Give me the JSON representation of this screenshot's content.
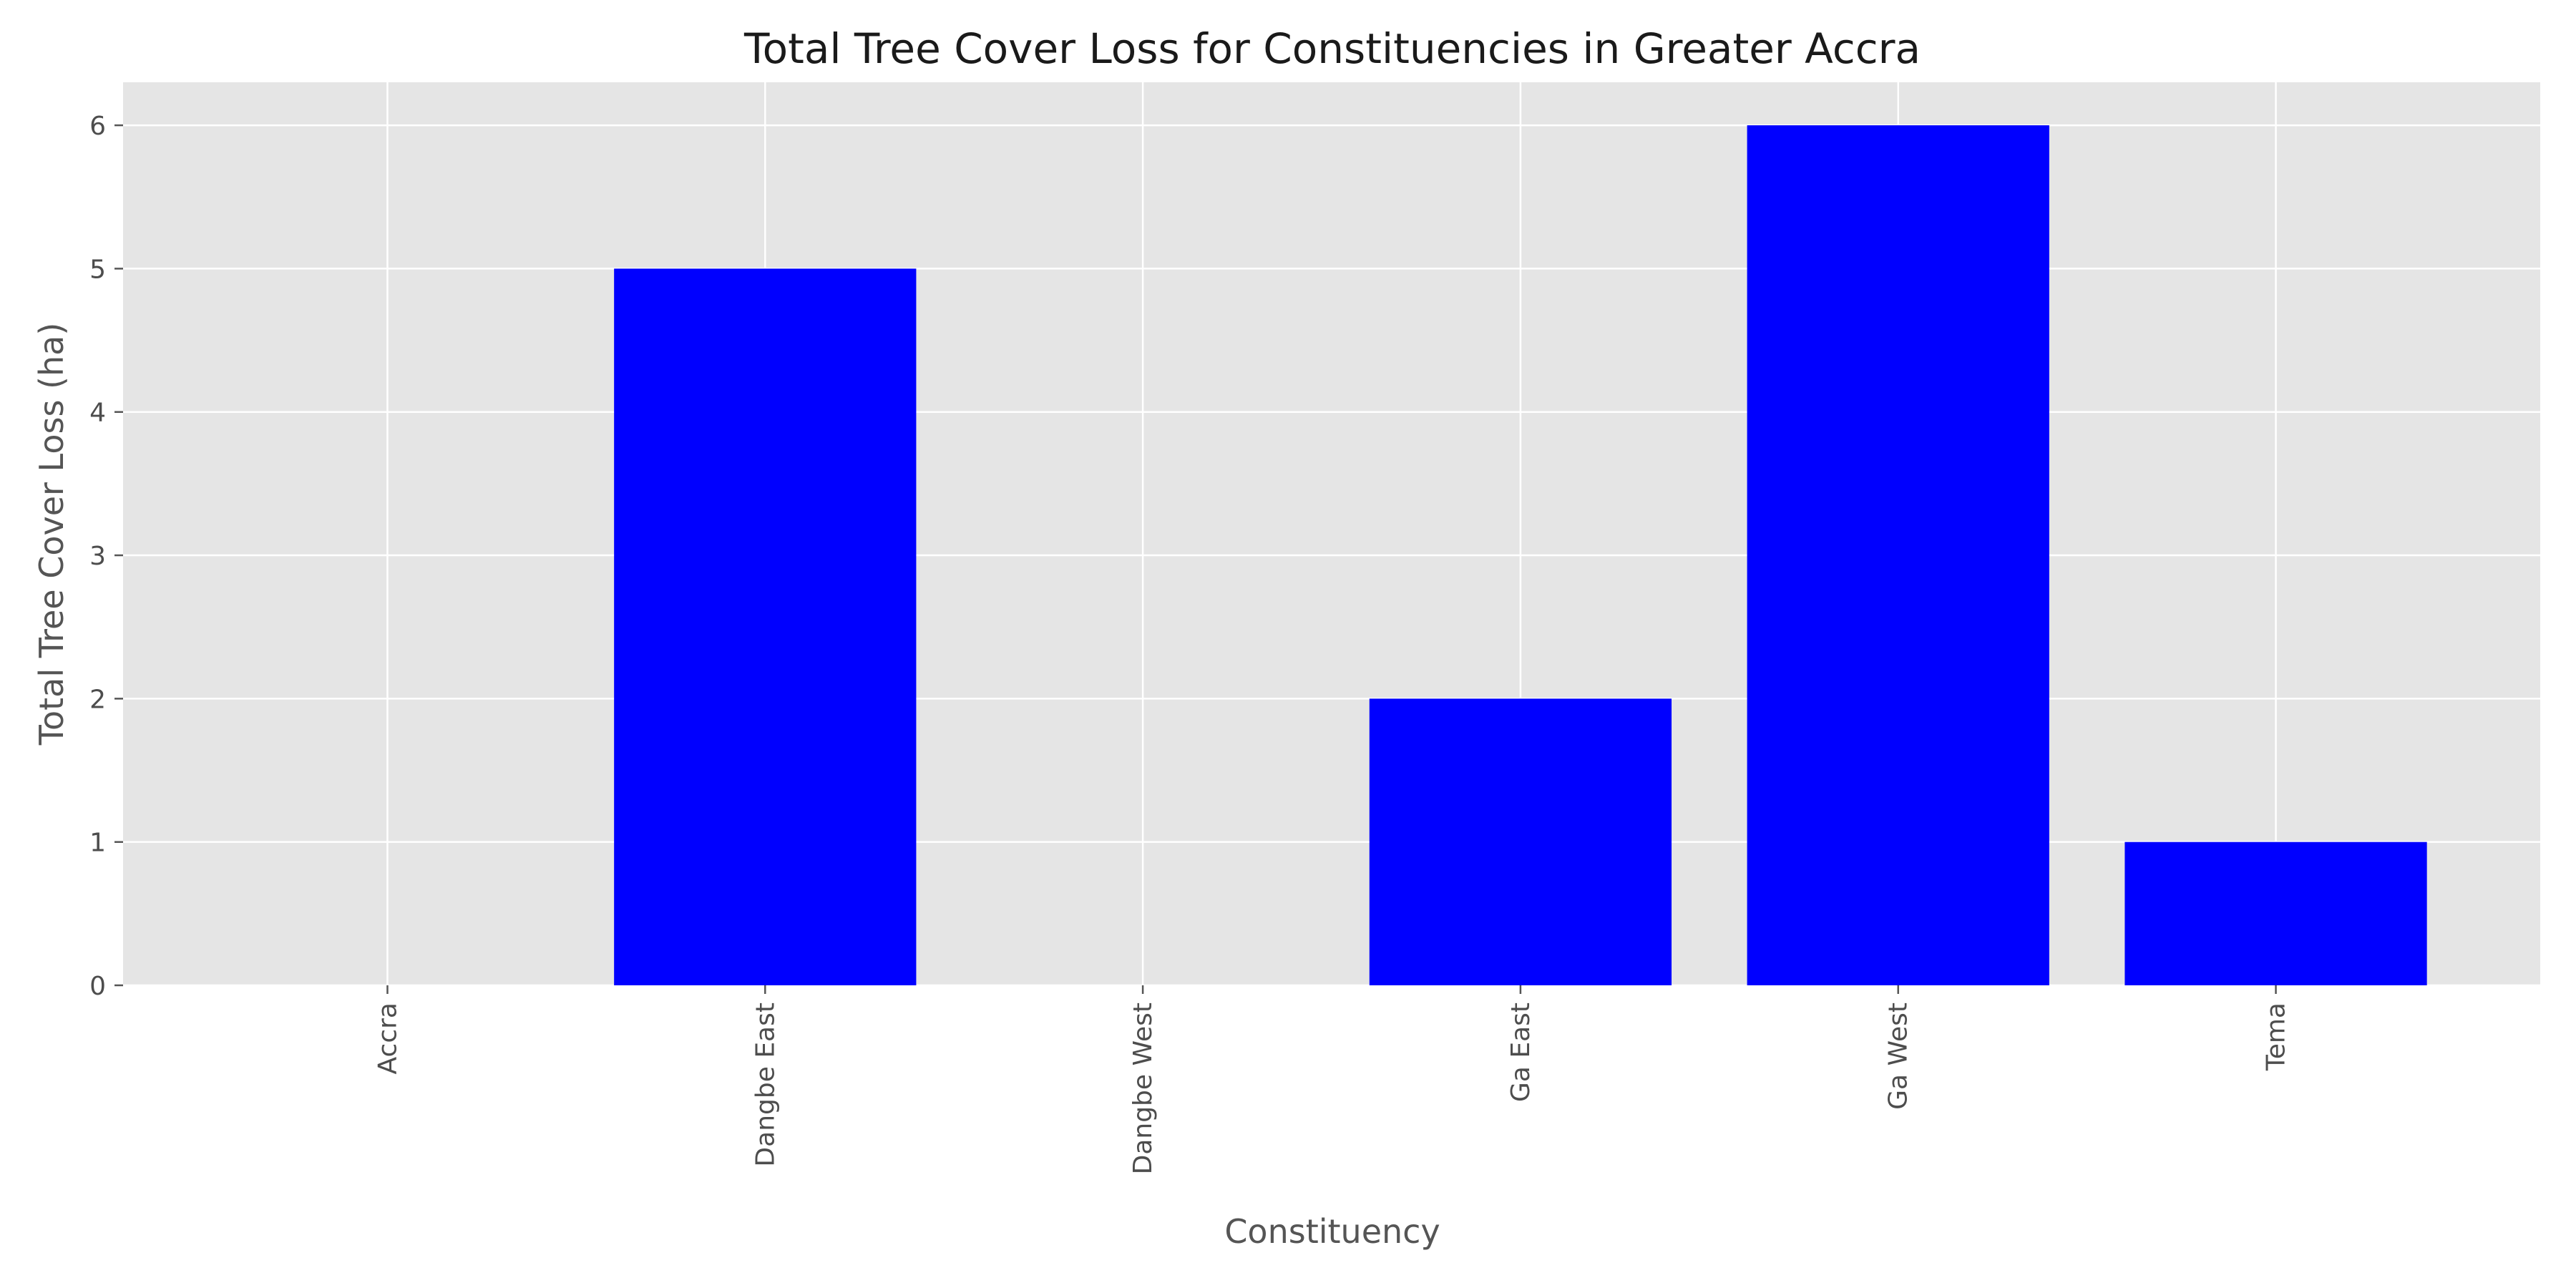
{
  "chart_data": {
    "type": "bar",
    "title": "Total Tree Cover Loss for Constituencies in Greater Accra",
    "xlabel": "Constituency",
    "ylabel": "Total Tree Cover Loss (ha)",
    "categories": [
      "Accra",
      "Dangbe East",
      "Dangbe West",
      "Ga East",
      "Ga West",
      "Tema"
    ],
    "values": [
      0,
      5,
      0,
      2,
      6,
      1
    ],
    "ylim": [
      0,
      6.3
    ],
    "yticks": [
      0,
      1,
      2,
      3,
      4,
      5,
      6
    ],
    "grid": true,
    "legend": "none",
    "colors": {
      "bar": "#0000ff",
      "plot_background": "#e5e5e5",
      "grid": "#ffffff",
      "tick": "#555555"
    }
  }
}
